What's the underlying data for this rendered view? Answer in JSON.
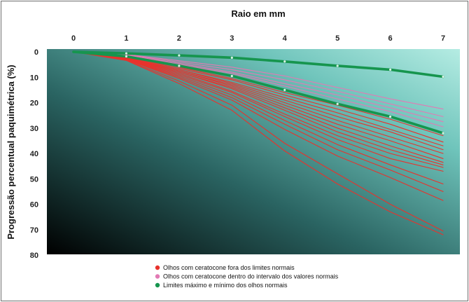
{
  "chart_data": {
    "type": "line",
    "xlabel": "Raio em mm",
    "ylabel": "Progressão percentual paquimétrica (%)",
    "x_axis_position": "top",
    "y_inverted": true,
    "xlim": [
      0,
      7
    ],
    "ylim": [
      0,
      80
    ],
    "x_ticks": [
      "0",
      "1",
      "2",
      "3",
      "4",
      "5",
      "6",
      "7"
    ],
    "y_ticks": [
      "0",
      "10",
      "20",
      "30",
      "40",
      "50",
      "60",
      "70",
      "80"
    ],
    "x": [
      0,
      1,
      2,
      3,
      4,
      5,
      6,
      7
    ],
    "grid": false,
    "legend_position": "bottom",
    "legend": [
      {
        "label": "Olhos com ceratocone fora dos limites normais",
        "color": "#e8322c"
      },
      {
        "label": "Olhos com ceratocone dentro do intervalo dos valores normais",
        "color": "#e27ab4"
      },
      {
        "label": "Limites máximo e mínimo dos olhos normais",
        "color": "#16954e"
      }
    ],
    "series": [
      {
        "group": "normal-limit",
        "color": "#16954e",
        "values": [
          0,
          0.6,
          1.4,
          2.3,
          3.8,
          5.5,
          7.0,
          9.8
        ]
      },
      {
        "group": "normal-limit",
        "color": "#16954e",
        "values": [
          0,
          1.8,
          5.5,
          9.5,
          15.0,
          20.5,
          25.5,
          32.0
        ]
      },
      {
        "group": "within-normal",
        "color": "#e27ab4",
        "values": [
          0,
          1.0,
          3.5,
          6.0,
          9.5,
          14.0,
          18.5,
          22.5
        ]
      },
      {
        "group": "within-normal",
        "color": "#e27ab4",
        "values": [
          0,
          1.2,
          4.0,
          7.0,
          11.0,
          15.5,
          20.5,
          25.5
        ]
      },
      {
        "group": "within-normal",
        "color": "#e27ab4",
        "values": [
          0,
          1.4,
          4.5,
          8.0,
          12.5,
          17.0,
          22.0,
          27.5
        ]
      },
      {
        "group": "within-normal",
        "color": "#e27ab4",
        "values": [
          0,
          1.5,
          5.0,
          8.5,
          13.5,
          18.5,
          23.5,
          29.5
        ]
      },
      {
        "group": "outside-normal",
        "color": "#e8322c",
        "values": [
          0,
          2.0,
          6.0,
          10.5,
          16.0,
          21.0,
          26.5,
          33.0
        ]
      },
      {
        "group": "outside-normal",
        "color": "#e8322c",
        "values": [
          0,
          2.0,
          6.5,
          11.0,
          17.0,
          22.5,
          28.5,
          35.5
        ]
      },
      {
        "group": "outside-normal",
        "color": "#e8322c",
        "values": [
          0,
          2.2,
          7.0,
          12.0,
          18.0,
          24.0,
          30.5,
          37.0
        ]
      },
      {
        "group": "outside-normal",
        "color": "#e8322c",
        "values": [
          0,
          2.3,
          7.0,
          12.5,
          19.0,
          25.5,
          31.5,
          38.5
        ]
      },
      {
        "group": "outside-normal",
        "color": "#e8322c",
        "values": [
          0,
          2.4,
          7.5,
          13.0,
          20.0,
          27.0,
          33.5,
          40.0
        ]
      },
      {
        "group": "outside-normal",
        "color": "#e8322c",
        "values": [
          0,
          2.5,
          7.5,
          13.5,
          21.0,
          28.5,
          35.0,
          42.0
        ]
      },
      {
        "group": "outside-normal",
        "color": "#e8322c",
        "values": [
          0,
          2.5,
          8.0,
          14.0,
          22.0,
          30.0,
          37.0,
          43.5
        ]
      },
      {
        "group": "outside-normal",
        "color": "#e8322c",
        "values": [
          0,
          2.6,
          8.0,
          14.5,
          23.0,
          31.5,
          38.5,
          44.5
        ]
      },
      {
        "group": "outside-normal",
        "color": "#e8322c",
        "values": [
          0,
          2.7,
          8.5,
          15.5,
          24.5,
          33.0,
          40.0,
          45.5
        ]
      },
      {
        "group": "outside-normal",
        "color": "#e8322c",
        "values": [
          0,
          2.8,
          9.0,
          16.0,
          25.5,
          34.5,
          42.0,
          47.0
        ]
      },
      {
        "group": "outside-normal",
        "color": "#e8322c",
        "values": [
          0,
          2.9,
          9.5,
          17.0,
          27.0,
          36.5,
          44.5,
          52.0
        ]
      },
      {
        "group": "outside-normal",
        "color": "#e8322c",
        "values": [
          0,
          3.0,
          10.0,
          18.0,
          28.5,
          38.5,
          46.5,
          55.0
        ]
      },
      {
        "group": "outside-normal",
        "color": "#e8322c",
        "values": [
          0,
          3.1,
          10.5,
          19.0,
          30.5,
          41.0,
          49.5,
          58.5
        ]
      },
      {
        "group": "outside-normal",
        "color": "#e8322c",
        "values": [
          0,
          3.3,
          11.5,
          21.0,
          36.0,
          48.0,
          60.0,
          70.5
        ]
      },
      {
        "group": "outside-normal",
        "color": "#e8322c",
        "values": [
          0,
          3.4,
          12.5,
          23.0,
          39.0,
          52.0,
          63.0,
          72.0
        ]
      }
    ]
  }
}
